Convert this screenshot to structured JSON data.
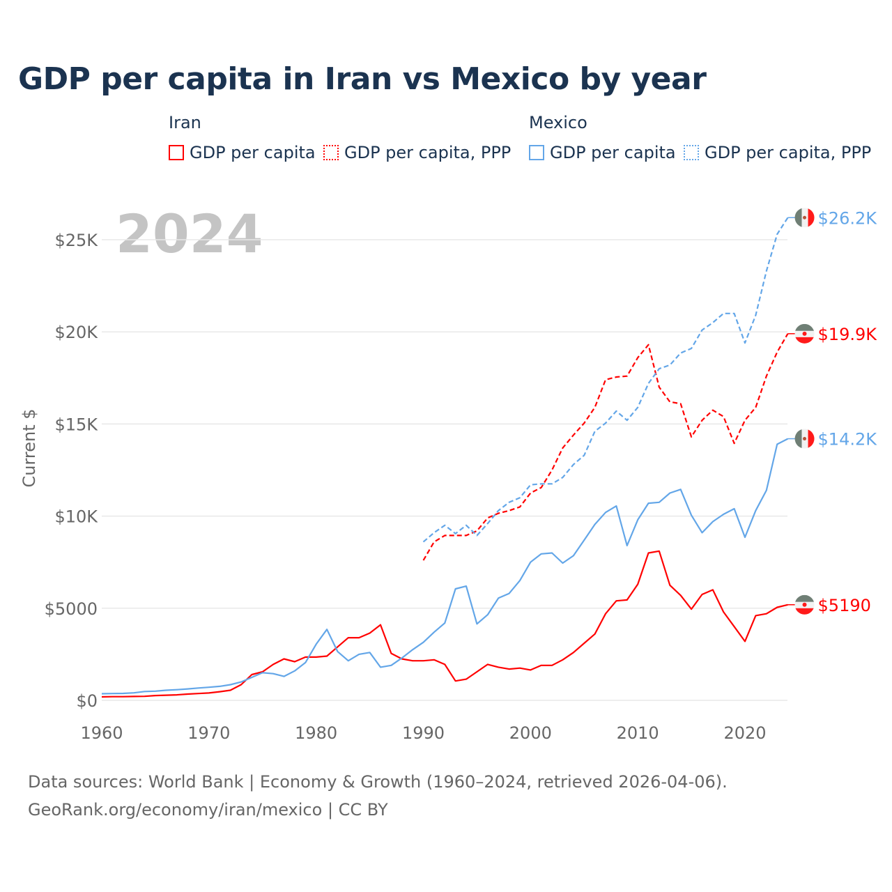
{
  "title": "GDP per capita in Iran vs Mexico by year",
  "legend": {
    "groups": [
      {
        "name": "Iran"
      },
      {
        "name": "Mexico"
      }
    ],
    "items": [
      {
        "label": "GDP per capita",
        "color": "#ff0000",
        "style": "solid"
      },
      {
        "label": "GDP per capita, PPP",
        "color": "#ff0000",
        "style": "dotted"
      },
      {
        "label": "GDP per capita",
        "color": "#63a6e8",
        "style": "solid"
      },
      {
        "label": "GDP per capita, PPP",
        "color": "#63a6e8",
        "style": "dotted"
      }
    ]
  },
  "year_watermark": "2024",
  "footer": {
    "line1": "Data sources: World Bank | Economy & Growth (1960–2024, retrieved 2026-04-06).",
    "line2": "GeoRank.org/economy/iran/mexico | CC BY"
  },
  "chart_data": {
    "type": "line",
    "title": "GDP per capita in Iran vs Mexico by year",
    "xlabel": "",
    "ylabel": "Current $",
    "xlim": [
      1960,
      2024
    ],
    "ylim": [
      0,
      26500
    ],
    "x_ticks": [
      1960,
      1970,
      1980,
      1990,
      2000,
      2010,
      2020
    ],
    "x_tick_labels": [
      "1960",
      "1970",
      "1980",
      "1990",
      "2000",
      "2010",
      "2020"
    ],
    "y_ticks": [
      0,
      5000,
      10000,
      15000,
      20000,
      25000
    ],
    "y_tick_labels": [
      "$0",
      "$5000",
      "$10K",
      "$15K",
      "$20K",
      "$25K"
    ],
    "grid": true,
    "series": [
      {
        "name": "Iran GDP per capita",
        "country": "Iran",
        "color": "#ff0000",
        "dash": false,
        "start": 1960,
        "end_label": "$5190",
        "values": [
          190,
          200,
          200,
          210,
          220,
          260,
          280,
          300,
          340,
          370,
          400,
          470,
          550,
          850,
          1400,
          1550,
          1950,
          2250,
          2100,
          2350,
          2350,
          2400,
          2900,
          3400,
          3400,
          3650,
          4100,
          2550,
          2250,
          2150,
          2150,
          2200,
          1950,
          1050,
          1150,
          1550,
          1950,
          1800,
          1700,
          1750,
          1650,
          1900,
          1900,
          2200,
          2600,
          3100,
          3600,
          4700,
          5400,
          5450,
          6300,
          8000,
          8100,
          6250,
          5700,
          4950,
          5750,
          6000,
          4800,
          4000,
          3200,
          4600,
          4700,
          5050,
          5190
        ]
      },
      {
        "name": "Mexico GDP per capita",
        "country": "Mexico",
        "color": "#63a6e8",
        "dash": false,
        "start": 1960,
        "end_label": "$14.2K",
        "values": [
          360,
          370,
          380,
          410,
          480,
          500,
          550,
          580,
          620,
          670,
          710,
          760,
          850,
          1000,
          1250,
          1500,
          1450,
          1300,
          1600,
          2050,
          3050,
          3850,
          2650,
          2150,
          2500,
          2600,
          1800,
          1900,
          2300,
          2750,
          3150,
          3700,
          4200,
          6050,
          6200,
          4150,
          4650,
          5550,
          5800,
          6500,
          7500,
          7950,
          8000,
          7450,
          7850,
          8700,
          9550,
          10200,
          10550,
          8400,
          9800,
          10700,
          10750,
          11250,
          11450,
          10050,
          9100,
          9700,
          10100,
          10400,
          8850,
          10300,
          11400,
          13900,
          14200
        ]
      },
      {
        "name": "Iran GDP per capita, PPP",
        "country": "Iran",
        "color": "#ff0000",
        "dash": true,
        "start": 1990,
        "end_label": "$19.9K",
        "values": [
          7600,
          8600,
          8950,
          8950,
          8950,
          9200,
          9900,
          10150,
          10300,
          10500,
          11250,
          11550,
          12500,
          13700,
          14400,
          15050,
          15900,
          17400,
          17550,
          17600,
          18600,
          19300,
          17000,
          16200,
          16100,
          14300,
          15200,
          15750,
          15400,
          13950,
          15200,
          15900,
          17600,
          18900,
          19900
        ]
      },
      {
        "name": "Mexico GDP per capita, PPP",
        "country": "Mexico",
        "color": "#63a6e8",
        "dash": true,
        "start": 1990,
        "end_label": "$26.2K",
        "values": [
          8600,
          9100,
          9500,
          9050,
          9500,
          8950,
          9600,
          10300,
          10750,
          11000,
          11700,
          11750,
          11750,
          12100,
          12800,
          13300,
          14600,
          15050,
          15700,
          15200,
          15900,
          17200,
          18000,
          18200,
          18850,
          19100,
          20100,
          20500,
          21000,
          21000,
          19400,
          20900,
          23300,
          25300,
          26200
        ]
      }
    ]
  }
}
